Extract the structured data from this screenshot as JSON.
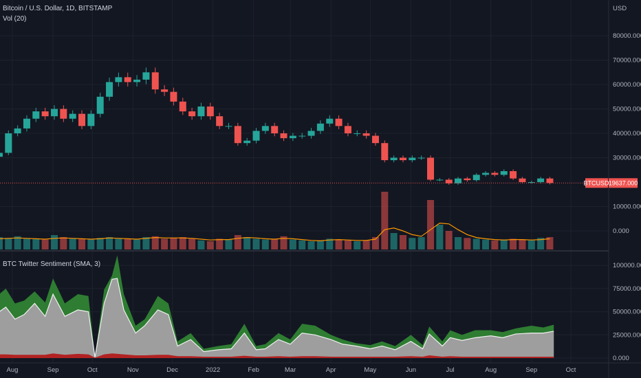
{
  "header": {
    "symbol_title": "Bitcoin / U.S. Dollar, 1D, BITSTAMP",
    "volume_title": "Vol (20)",
    "currency": "USD"
  },
  "sentiment_pane": {
    "title": "BTC Twitter Sentiment (SMA, 3)"
  },
  "last_price": {
    "symbol": "BTCUSD",
    "value": "19637.000",
    "color": "#ef5350"
  },
  "colors": {
    "background": "#131722",
    "grid": "#1e222d",
    "up": "#26a69a",
    "down": "#ef5350",
    "volume_ma": "#ff9800",
    "positive": "#2e7d32",
    "neutral": "#9e9e9e",
    "negative": "#b22222"
  },
  "chart_data": [
    {
      "type": "candlestick",
      "title": "Bitcoin / U.S. Dollar, 1D, BITSTAMP",
      "ylabel": "USD",
      "ylim": [
        0,
        85000
      ],
      "y_ticks": [
        "80000.000",
        "70000.000",
        "60000.000",
        "50000.000",
        "40000.000",
        "30000.000",
        "10000.000",
        "0.000"
      ],
      "x_ticks": [
        "Aug",
        "Sep",
        "Oct",
        "Nov",
        "Dec",
        "2022",
        "Feb",
        "Mar",
        "Apr",
        "May",
        "Jun",
        "Jul",
        "Aug",
        "Sep",
        "Oct"
      ],
      "x_tick_dates": [
        "2021-08-01",
        "2021-09-01",
        "2021-10-01",
        "2021-11-01",
        "2021-12-01",
        "2022-01-01",
        "2022-02-01",
        "2022-03-01",
        "2022-04-01",
        "2022-05-01",
        "2022-06-01",
        "2022-07-01",
        "2022-08-01",
        "2022-09-01",
        "2022-10-01"
      ],
      "grid": true,
      "weekly_dates": [
        "2021-07-22",
        "2021-07-29",
        "2021-08-05",
        "2021-08-12",
        "2021-08-19",
        "2021-08-26",
        "2021-09-02",
        "2021-09-09",
        "2021-09-16",
        "2021-09-23",
        "2021-09-30",
        "2021-10-07",
        "2021-10-14",
        "2021-10-21",
        "2021-10-28",
        "2021-11-04",
        "2021-11-11",
        "2021-11-18",
        "2021-11-25",
        "2021-12-02",
        "2021-12-09",
        "2021-12-16",
        "2021-12-23",
        "2021-12-30",
        "2022-01-06",
        "2022-01-13",
        "2022-01-20",
        "2022-01-27",
        "2022-02-03",
        "2022-02-10",
        "2022-02-17",
        "2022-02-24",
        "2022-03-03",
        "2022-03-10",
        "2022-03-17",
        "2022-03-24",
        "2022-03-31",
        "2022-04-07",
        "2022-04-14",
        "2022-04-21",
        "2022-04-28",
        "2022-05-05",
        "2022-05-12",
        "2022-05-19",
        "2022-05-26",
        "2022-06-02",
        "2022-06-09",
        "2022-06-16",
        "2022-06-23",
        "2022-06-30",
        "2022-07-07",
        "2022-07-14",
        "2022-07-21",
        "2022-07-28",
        "2022-08-04",
        "2022-08-11",
        "2022-08-18",
        "2022-08-25",
        "2022-09-01",
        "2022-09-08",
        "2022-09-15"
      ],
      "close": [
        32000,
        40000,
        42000,
        46000,
        49000,
        47000,
        50000,
        46000,
        48000,
        43000,
        48000,
        55000,
        61000,
        63000,
        61000,
        62000,
        65000,
        58000,
        57000,
        53000,
        49000,
        47000,
        51000,
        47000,
        43000,
        43000,
        36000,
        37000,
        41000,
        43000,
        40000,
        38000,
        39000,
        39000,
        41000,
        44000,
        46000,
        43000,
        40000,
        40000,
        39000,
        36000,
        29000,
        30000,
        29000,
        30000,
        30000,
        21000,
        21000,
        19500,
        21500,
        20800,
        23000,
        23800,
        23000,
        24500,
        21500,
        20000,
        20000,
        21500,
        19637
      ],
      "volume": [
        3000,
        2800,
        3200,
        2600,
        2500,
        2400,
        3500,
        3000,
        2600,
        2500,
        2400,
        2800,
        3000,
        2600,
        2500,
        2400,
        3000,
        3200,
        2600,
        2800,
        3000,
        2600,
        2200,
        2000,
        2600,
        2400,
        3500,
        3000,
        2600,
        2400,
        2500,
        3200,
        2400,
        2200,
        2000,
        2200,
        2600,
        2400,
        2200,
        2000,
        2200,
        3000,
        14000,
        4000,
        3500,
        2800,
        3000,
        12000,
        6000,
        4500,
        3000,
        2800,
        2600,
        2400,
        2200,
        2400,
        2600,
        2400,
        2200,
        2800,
        3000
      ],
      "volume_ma": [
        2600,
        2700,
        2800,
        2700,
        2600,
        2500,
        2700,
        2800,
        2700,
        2600,
        2500,
        2600,
        2800,
        2700,
        2600,
        2500,
        2700,
        2900,
        2800,
        2800,
        2800,
        2700,
        2500,
        2300,
        2400,
        2400,
        2700,
        2900,
        2800,
        2600,
        2500,
        2700,
        2600,
        2400,
        2200,
        2100,
        2300,
        2400,
        2300,
        2200,
        2200,
        2500,
        4800,
        5200,
        4500,
        3600,
        3200,
        4800,
        6400,
        6200,
        4800,
        3600,
        2900,
        2600,
        2400,
        2300,
        2400,
        2400,
        2300,
        2400,
        2600
      ]
    },
    {
      "type": "area",
      "title": "BTC Twitter Sentiment (SMA, 3)",
      "ylim": [
        0,
        115000
      ],
      "y_ticks": [
        "100000.000",
        "75000.000",
        "50000.000",
        "25000.000",
        "0.000"
      ],
      "grid": true,
      "dates": [
        "2021-07-22",
        "2021-07-27",
        "2021-08-03",
        "2021-08-10",
        "2021-08-18",
        "2021-08-26",
        "2021-09-01",
        "2021-09-10",
        "2021-09-20",
        "2021-09-28",
        "2021-10-03",
        "2021-10-10",
        "2021-10-16",
        "2021-10-20",
        "2021-10-25",
        "2021-11-03",
        "2021-11-10",
        "2021-11-20",
        "2021-11-28",
        "2021-12-05",
        "2021-12-15",
        "2021-12-25",
        "2022-01-05",
        "2022-01-15",
        "2022-01-25",
        "2022-02-03",
        "2022-02-10",
        "2022-02-20",
        "2022-03-01",
        "2022-03-10",
        "2022-03-20",
        "2022-04-01",
        "2022-04-10",
        "2022-04-20",
        "2022-05-01",
        "2022-05-10",
        "2022-05-20",
        "2022-06-01",
        "2022-06-10",
        "2022-06-15",
        "2022-06-25",
        "2022-07-01",
        "2022-07-10",
        "2022-07-20",
        "2022-08-01",
        "2022-08-10",
        "2022-08-20",
        "2022-09-01",
        "2022-09-10",
        "2022-09-18"
      ],
      "series": [
        {
          "role": "total",
          "values": [
            69000,
            75000,
            59000,
            62000,
            72000,
            60000,
            86000,
            59000,
            69000,
            67000,
            2000,
            74000,
            89000,
            111000,
            69000,
            35000,
            42000,
            67000,
            59000,
            18000,
            27000,
            10000,
            13000,
            15000,
            37000,
            13000,
            15000,
            27000,
            20000,
            37000,
            35000,
            25000,
            20000,
            16000,
            14000,
            18000,
            13000,
            25000,
            14000,
            34000,
            18000,
            30000,
            25000,
            30000,
            30000,
            28000,
            32000,
            35000,
            33000,
            36000
          ]
        },
        {
          "role": "neutral",
          "values": [
            50000,
            55000,
            42000,
            47000,
            59000,
            45000,
            69000,
            45000,
            52000,
            50000,
            1000,
            59000,
            85000,
            86000,
            52000,
            27000,
            35000,
            52000,
            47000,
            13000,
            20000,
            7000,
            9000,
            10000,
            27000,
            9000,
            10000,
            20000,
            15000,
            27000,
            25000,
            20000,
            15000,
            13000,
            10000,
            13000,
            9000,
            18000,
            10000,
            26000,
            13000,
            22000,
            19000,
            22000,
            24000,
            22000,
            26000,
            27000,
            27000,
            29000
          ]
        },
        {
          "role": "negative",
          "values": [
            4000,
            4000,
            3500,
            3500,
            3500,
            3500,
            5000,
            3500,
            4500,
            4000,
            500,
            4000,
            5000,
            4500,
            4000,
            3000,
            3000,
            3500,
            3500,
            2000,
            2000,
            1500,
            1500,
            1500,
            2500,
            1500,
            1500,
            2000,
            1500,
            2000,
            2000,
            1500,
            1500,
            1500,
            1500,
            1500,
            1500,
            2000,
            1500,
            3000,
            1500,
            2000,
            1500,
            1500,
            1500,
            1500,
            1500,
            1500,
            1500,
            1500
          ]
        }
      ]
    }
  ]
}
